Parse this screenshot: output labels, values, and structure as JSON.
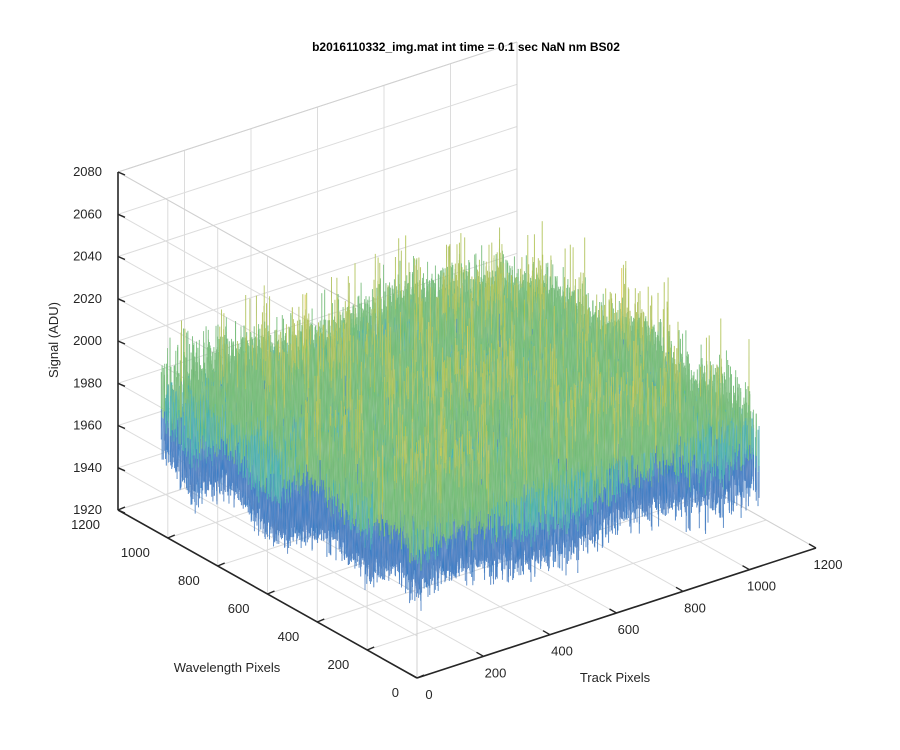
{
  "chart_data": {
    "type": "surface",
    "title": "b2016110332_img.mat int time = 0.1 sec  NaN nm BS02",
    "xlabel": "Track Pixels",
    "ylabel": "Wavelength Pixels",
    "zlabel": "Signal (ADU)",
    "xlim": [
      0,
      1200
    ],
    "ylim": [
      0,
      1200
    ],
    "zlim": [
      1920,
      2080
    ],
    "xticks": [
      "0",
      "200",
      "400",
      "600",
      "800",
      "1000",
      "1200"
    ],
    "yticks": [
      "0",
      "200",
      "400",
      "600",
      "800",
      "1000",
      "1200"
    ],
    "zticks": [
      "1920",
      "1940",
      "1960",
      "1980",
      "2000",
      "2020",
      "2040",
      "2060",
      "2080"
    ],
    "grid": true,
    "surface": {
      "x_extent": [
        0,
        1024
      ],
      "y_extent": [
        0,
        1024
      ],
      "z_mean": 1985,
      "z_min": 1925,
      "z_max": 2060
    },
    "colormap": [
      "#0072bd",
      "#1e90d8",
      "#2bb3b3",
      "#6cc070",
      "#b4c843",
      "#e8d032"
    ]
  }
}
